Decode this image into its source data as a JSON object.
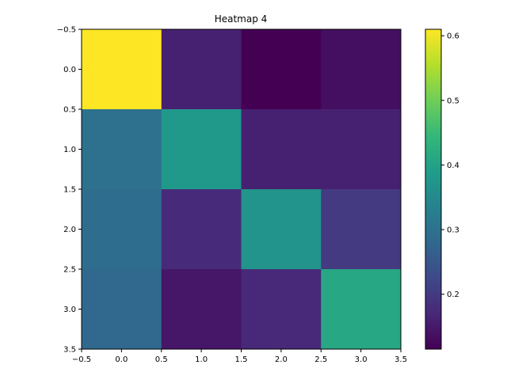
{
  "chart_data": {
    "type": "heatmap",
    "title": "Heatmap 4",
    "xlabel": "",
    "ylabel": "",
    "xlim": [
      -0.5,
      3.5
    ],
    "ylim": [
      3.5,
      -0.5
    ],
    "x_ticks": [
      "−0.5",
      "0.0",
      "0.5",
      "1.0",
      "1.5",
      "2.0",
      "2.5",
      "3.0",
      "3.5"
    ],
    "y_ticks": [
      "−0.5",
      "0.0",
      "0.5",
      "1.0",
      "1.5",
      "2.0",
      "2.5",
      "3.0",
      "3.5"
    ],
    "colormap": "viridis",
    "color_range": [
      0.115,
      0.61
    ],
    "colorbar_ticks": [
      "0.2",
      "0.3",
      "0.4",
      "0.5",
      "0.6"
    ],
    "values": [
      [
        0.61,
        0.16,
        0.115,
        0.135
      ],
      [
        0.3,
        0.38,
        0.16,
        0.16
      ],
      [
        0.29,
        0.175,
        0.37,
        0.2
      ],
      [
        0.28,
        0.145,
        0.17,
        0.41
      ]
    ]
  }
}
